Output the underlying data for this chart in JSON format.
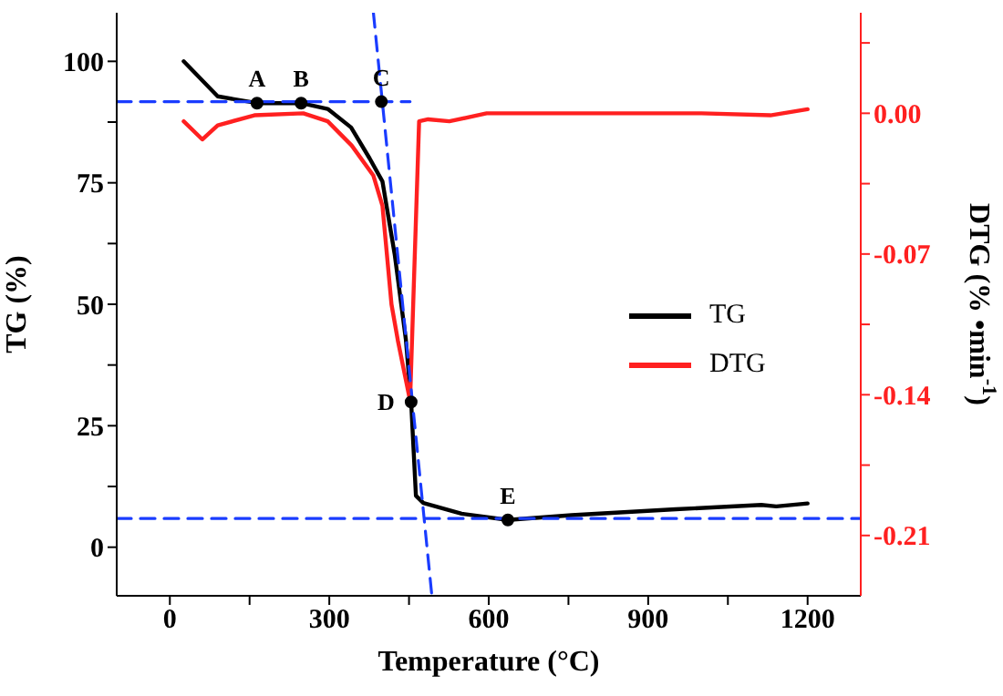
{
  "chart_data": {
    "type": "line",
    "xlabel": "Temperature (°C)",
    "ylabel": "TG (%)",
    "y2label": "DTG (% •min$^{-1}$)",
    "xlim": [
      -100,
      1300
    ],
    "xticks": [
      0,
      {
        "value": 150,
        "label": null
      },
      300,
      {
        "value": 450,
        "label": null
      },
      600,
      {
        "value": 750,
        "label": null
      },
      900,
      {
        "value": 1050,
        "label": null
      },
      1200
    ],
    "ylim": [
      -10,
      110
    ],
    "yticks": [
      0,
      {
        "value": 12.5,
        "label": null
      },
      25,
      {
        "value": 37.5,
        "label": null
      },
      50,
      {
        "value": 62.5,
        "label": null
      },
      75,
      {
        "value": 87.5,
        "label": null
      },
      100
    ],
    "y2lim": [
      -0.24,
      0.05
    ],
    "y2ticks": [
      {
        "value": 0,
        "label": "0.00"
      },
      {
        "value": 0.035,
        "label": null
      },
      {
        "value": -0.035,
        "label": null
      },
      {
        "value": -0.07,
        "label": "-0.07"
      },
      {
        "value": -0.105,
        "label": null
      },
      {
        "value": -0.14,
        "label": "-0.14"
      },
      {
        "value": -0.175,
        "label": null
      },
      {
        "value": -0.21,
        "label": "-0.21"
      }
    ],
    "legend": "right",
    "series": [
      {
        "name": "TG",
        "color": "#000000",
        "x": [
          26,
          90,
          164,
          247,
          297,
          341,
          376,
          400,
          423,
          444,
          454,
          463,
          477,
          549,
          636,
          756,
          952,
          1113,
          1141,
          1200
        ],
        "values": [
          100,
          92.8,
          91.4,
          91.4,
          90.2,
          86.4,
          80,
          75.3,
          60.3,
          42.8,
          29.9,
          10.6,
          9.1,
          6.9,
          5.6,
          6.6,
          7.8,
          8.7,
          8.4,
          9.0
        ]
      },
      {
        "name": "DTG",
        "color": "#ff2020",
        "axis": "y2",
        "x": [
          26,
          61,
          90,
          159,
          251,
          297,
          342,
          383,
          400,
          417,
          429,
          452,
          469,
          486,
          526,
          596,
          800,
          1000,
          1130,
          1200
        ],
        "values": [
          -0.004,
          -0.013,
          -0.006,
          -0.001,
          0,
          -0.004,
          -0.016,
          -0.031,
          -0.046,
          -0.095,
          -0.113,
          -0.143,
          -0.004,
          -0.003,
          -0.004,
          0,
          0,
          0,
          -0.001,
          0.002
        ]
      },
      {
        "type": "line",
        "color": "#1a3cff",
        "line_style": "dashed",
        "x": [
          383,
          493
        ],
        "values": [
          110,
          -10
        ]
      },
      {
        "type": "line",
        "color": "#1a3cff",
        "line_style": "dashed",
        "x": [
          -100,
          452
        ],
        "values": [
          91.7,
          91.7
        ]
      },
      {
        "type": "line",
        "color": "#1a3cff",
        "line_style": "dashed",
        "x": [
          -100,
          1300
        ],
        "values": [
          5.9,
          5.9
        ]
      }
    ],
    "annotations": [
      {
        "text": "A",
        "x": 164,
        "y": 91.4
      },
      {
        "text": "B",
        "x": 247,
        "y": 91.4
      },
      {
        "text": "C",
        "x": 398,
        "y": 91.7
      },
      {
        "text": "D",
        "x": 454,
        "y": 29.9
      },
      {
        "text": "E",
        "x": 636,
        "y": 5.6
      }
    ]
  }
}
